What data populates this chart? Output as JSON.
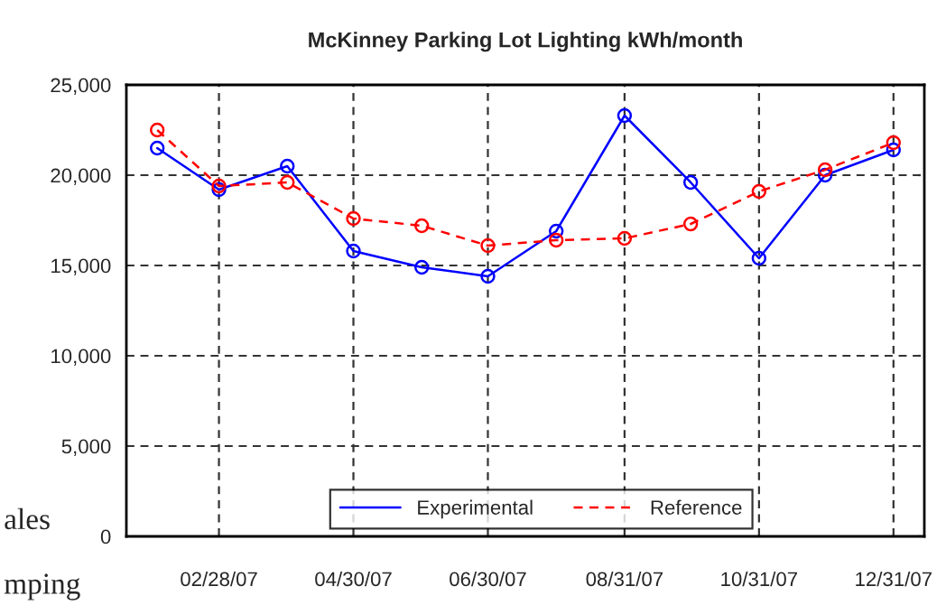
{
  "chart_data": {
    "type": "line",
    "title": "McKinney Parking Lot Lighting kWh/month",
    "x": [
      "2007-01-31",
      "2007-02-28",
      "2007-03-31",
      "2007-04-30",
      "2007-05-31",
      "2007-06-30",
      "2007-07-31",
      "2007-08-31",
      "2007-09-30",
      "2007-10-31",
      "2007-11-30",
      "2007-12-31"
    ],
    "series": [
      {
        "name": "Experimental",
        "color": "#0000ff",
        "line_style": "solid",
        "values": [
          21500,
          19200,
          20500,
          15800,
          14900,
          14400,
          16900,
          23300,
          19600,
          15400,
          20000,
          21400
        ]
      },
      {
        "name": "Reference",
        "color": "#ff0000",
        "line_style": "dashed",
        "values": [
          22500,
          19400,
          19600,
          17600,
          17200,
          16100,
          16400,
          16500,
          17300,
          19100,
          20300,
          21800
        ]
      }
    ],
    "marker": "circle",
    "xlim": [
      "2007-01-17",
      "2008-01-14"
    ],
    "xticks": [
      {
        "value": "2007-02-28",
        "label": "02/28/07"
      },
      {
        "value": "2007-04-30",
        "label": "04/30/07"
      },
      {
        "value": "2007-06-30",
        "label": "06/30/07"
      },
      {
        "value": "2007-08-31",
        "label": "08/31/07"
      },
      {
        "value": "2007-10-31",
        "label": "10/31/07"
      },
      {
        "value": "2007-12-31",
        "label": "12/31/07"
      }
    ],
    "ylim": [
      0,
      25000
    ],
    "yticks": [
      {
        "value": 0,
        "label": "0"
      },
      {
        "value": 5000,
        "label": "5,000"
      },
      {
        "value": 10000,
        "label": "10,000"
      },
      {
        "value": 15000,
        "label": "15,000"
      },
      {
        "value": 20000,
        "label": "20,000"
      },
      {
        "value": 25000,
        "label": "25,000"
      }
    ],
    "grid": true,
    "legend": "bottom",
    "annotations": [
      "ales",
      "mping"
    ]
  }
}
